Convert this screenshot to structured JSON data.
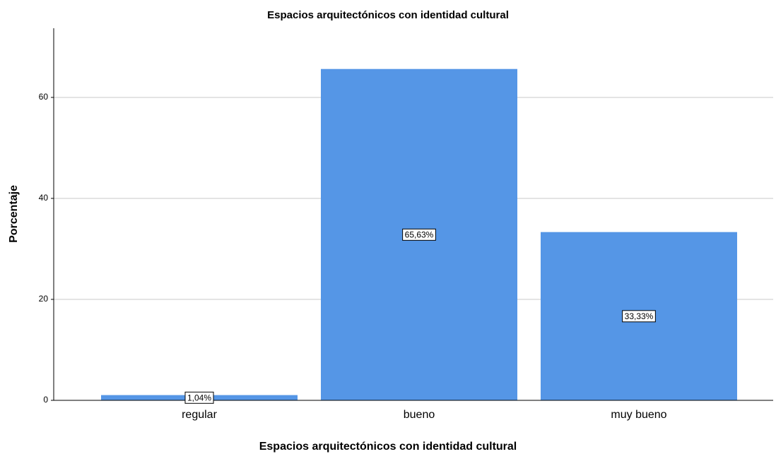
{
  "chart_data": {
    "type": "bar",
    "title": "Espacios arquitectónicos con identidad cultural",
    "x_label": "Espacios arquitectónicos con identidad cultural",
    "y_label": "Porcentaje",
    "categories": [
      "regular",
      "bueno",
      "muy bueno"
    ],
    "values": [
      1.04,
      65.63,
      33.33
    ],
    "value_labels": [
      "1,04%",
      "65,63%",
      "33,33%"
    ],
    "color": "#5596e6",
    "ylim": [
      0,
      73.7
    ],
    "yticks": [
      0,
      20,
      40,
      60
    ],
    "grid": true
  }
}
